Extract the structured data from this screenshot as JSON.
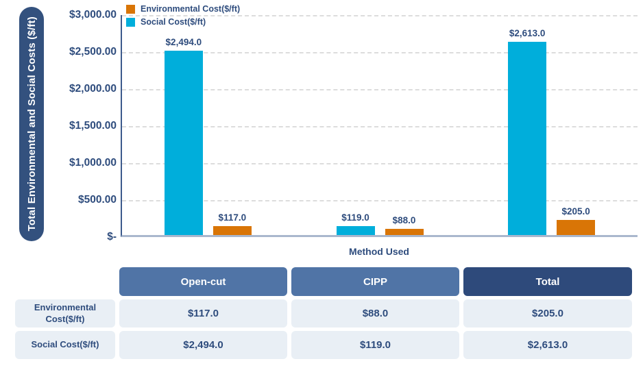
{
  "chart_data": {
    "type": "bar",
    "title": "",
    "xlabel": "Method Used",
    "ylabel": "Total Environmental and Social Costs ($/ft)",
    "categories": [
      "Open-cut",
      "CIPP",
      "Total"
    ],
    "series": [
      {
        "name": "Social Cost($/ft)",
        "color": "#00AEDB",
        "values": [
          2494,
          119,
          2613
        ],
        "labels": [
          "$2,494.0",
          "$119.0",
          "$2,613.0"
        ]
      },
      {
        "name": "Environmental Cost($/ft)",
        "color": "#D97506",
        "values": [
          117,
          88,
          205
        ],
        "labels": [
          "$117.0",
          "$88.0",
          "$205.0"
        ]
      }
    ],
    "legend": [
      {
        "label": "Environmental Cost($/ft)",
        "color": "#D97506"
      },
      {
        "label": "Social Cost($/ft)",
        "color": "#00AEDB"
      }
    ],
    "legend_position": "top-left",
    "grid": "horizontal-dashed",
    "ylim": [
      0,
      3000
    ],
    "ytick_step": 500,
    "yticks": [
      "$3,000.00",
      "$2,500.00",
      "$2,000.00",
      "$1,500.00",
      "$1,000.00",
      "$500.00",
      "$-"
    ]
  },
  "table": {
    "column_headers": [
      "Open-cut",
      "CIPP",
      "Total"
    ],
    "header_colors": [
      "#5074A6",
      "#5074A6",
      "#2E4A7B"
    ],
    "rows": [
      {
        "label": "Environmental Cost($/ft)",
        "values": [
          "$117.0",
          "$88.0",
          "$205.0"
        ]
      },
      {
        "label": "Social Cost($/ft)",
        "values": [
          "$2,494.0",
          "$119.0",
          "$2,613.0"
        ]
      }
    ],
    "cell_background": "#E9EFF5"
  },
  "colors": {
    "text": "#2E4C7D",
    "y_axis_pill": "#33517E",
    "y_axis_line": "#3C5A8C",
    "x_axis_line": "#A9B7CD",
    "gridline": "#DCDCDC",
    "social_bar": "#00AEDB",
    "environmental_bar": "#D97506"
  }
}
